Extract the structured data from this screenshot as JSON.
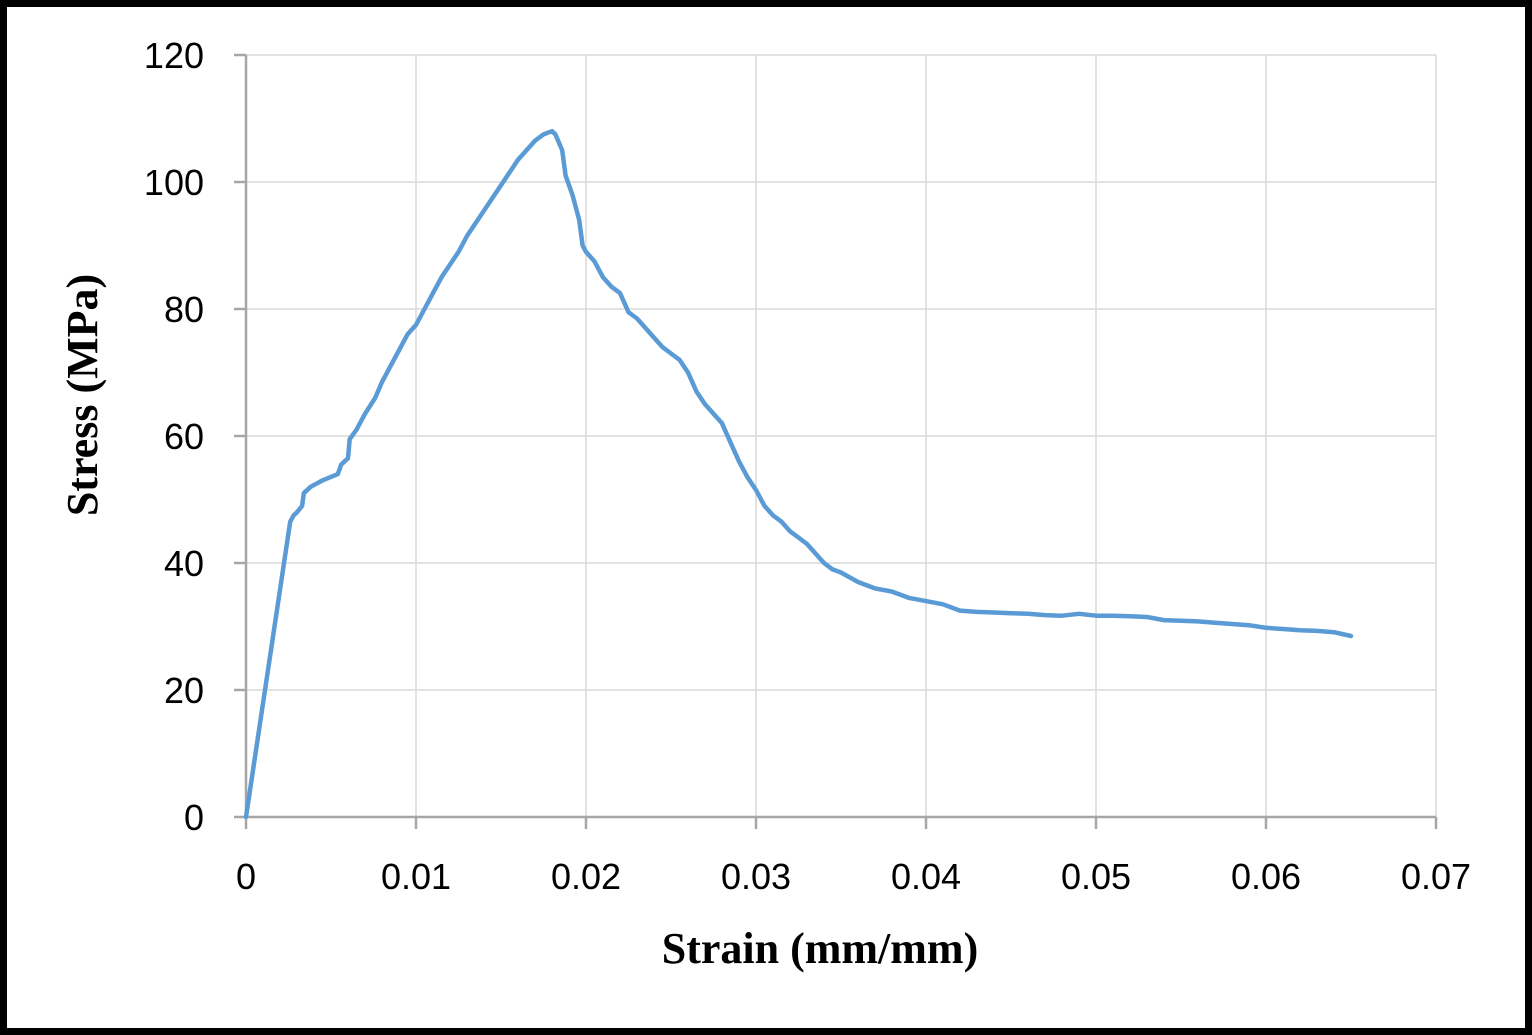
{
  "chart_data": {
    "type": "line",
    "title": "",
    "xlabel": "Strain (mm/mm)",
    "ylabel": "Stress (MPa)",
    "xlim": [
      0,
      0.07
    ],
    "ylim": [
      0,
      120
    ],
    "x_ticks": [
      0,
      0.01,
      0.02,
      0.03,
      0.04,
      0.05,
      0.06,
      0.07
    ],
    "x_tick_labels": [
      "0",
      "0.01",
      "0.02",
      "0.03",
      "0.04",
      "0.05",
      "0.06",
      "0.07"
    ],
    "y_ticks": [
      0,
      20,
      40,
      60,
      80,
      100,
      120
    ],
    "y_tick_labels": [
      "0",
      "20",
      "40",
      "60",
      "80",
      "100",
      "120"
    ],
    "grid": true,
    "legend": "none",
    "colors": {
      "line": "#5b9bd5",
      "grid": "#d9d9d9",
      "axis": "#a6a6a6",
      "frame": "#000000"
    },
    "series": [
      {
        "x": [
          0,
          0.0026,
          0.0028,
          0.003,
          0.0033,
          0.0034,
          0.0038,
          0.0045,
          0.0054,
          0.0056,
          0.006,
          0.0061,
          0.0065,
          0.007,
          0.0076,
          0.008,
          0.0085,
          0.009,
          0.0095,
          0.01,
          0.0105,
          0.011,
          0.0115,
          0.012,
          0.0125,
          0.013,
          0.0135,
          0.014,
          0.0145,
          0.015,
          0.0155,
          0.016,
          0.0165,
          0.017,
          0.0175,
          0.018,
          0.0182,
          0.0186,
          0.0188,
          0.0192,
          0.0196,
          0.0198,
          0.02,
          0.0205,
          0.021,
          0.0215,
          0.022,
          0.0225,
          0.023,
          0.0235,
          0.024,
          0.0245,
          0.025,
          0.0255,
          0.026,
          0.0265,
          0.027,
          0.0275,
          0.028,
          0.0285,
          0.029,
          0.0295,
          0.03,
          0.0305,
          0.031,
          0.0315,
          0.032,
          0.0325,
          0.033,
          0.0335,
          0.034,
          0.0345,
          0.035,
          0.036,
          0.037,
          0.038,
          0.039,
          0.04,
          0.041,
          0.042,
          0.043,
          0.044,
          0.045,
          0.046,
          0.047,
          0.048,
          0.049,
          0.05,
          0.051,
          0.052,
          0.053,
          0.054,
          0.055,
          0.056,
          0.057,
          0.058,
          0.059,
          0.06,
          0.061,
          0.062,
          0.063,
          0.064,
          0.065
        ],
        "y": [
          0,
          46.5,
          47.5,
          48,
          49,
          51,
          52,
          53,
          54,
          55.5,
          56.5,
          59.5,
          61,
          63.5,
          66,
          68.5,
          71,
          73.5,
          76,
          77.5,
          80,
          82.5,
          85,
          87,
          89,
          91.5,
          93.5,
          95.5,
          97.5,
          99.5,
          101.5,
          103.5,
          105,
          106.5,
          107.5,
          108,
          107.5,
          105,
          101,
          98,
          94,
          90,
          89,
          87.5,
          85,
          83.5,
          82.5,
          79.5,
          78.5,
          77,
          75.5,
          74,
          73,
          72,
          70,
          67,
          65,
          63.5,
          62,
          59,
          56,
          53.5,
          51.5,
          49,
          47.5,
          46.5,
          45,
          44,
          43,
          41.5,
          40,
          39,
          38.5,
          37,
          36,
          35.5,
          34.5,
          34,
          33.5,
          32.5,
          32.3,
          32.2,
          32.1,
          32,
          31.8,
          31.7,
          32,
          31.7,
          31.7,
          31.6,
          31.5,
          31,
          30.9,
          30.8,
          30.6,
          30.4,
          30.2,
          29.8,
          29.6,
          29.4,
          29.3,
          29.1,
          28.5
        ]
      }
    ]
  }
}
